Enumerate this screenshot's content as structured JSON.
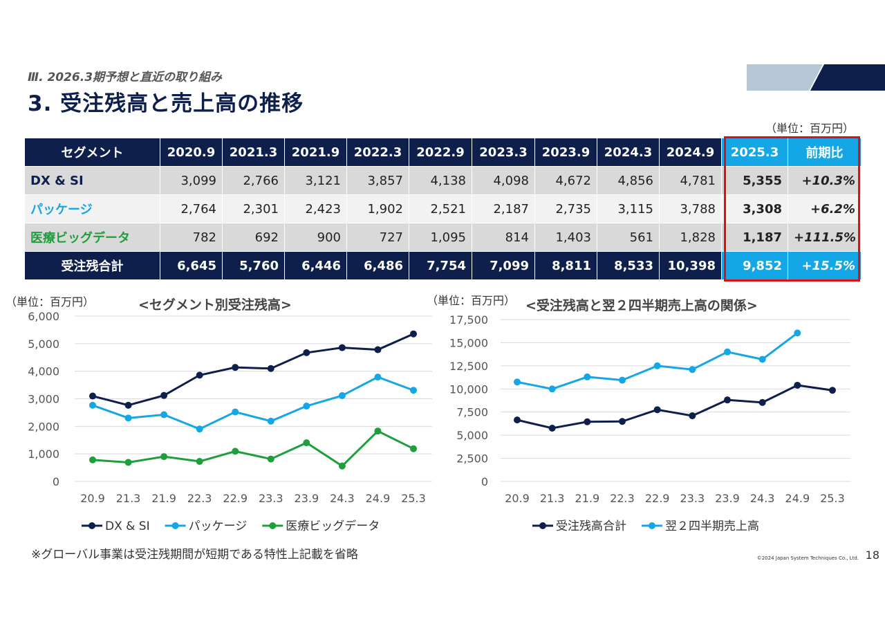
{
  "header": {
    "section": "Ⅲ. 2026.3期予想と直近の取り組み",
    "title": "3. 受注残高と売上高の推移"
  },
  "table": {
    "unit": "（単位：百万円）",
    "columns": [
      "セグメント",
      "2020.9",
      "2021.3",
      "2021.9",
      "2022.3",
      "2022.9",
      "2023.3",
      "2023.9",
      "2024.3",
      "2024.9",
      "2025.3",
      "前期比"
    ],
    "rows": [
      {
        "name": "DX & SI",
        "cells": [
          "3,099",
          "2,766",
          "3,121",
          "3,857",
          "4,138",
          "4,098",
          "4,672",
          "4,856",
          "4,781",
          "5,355",
          "+10.3%"
        ]
      },
      {
        "name": "パッケージ",
        "cells": [
          "2,764",
          "2,301",
          "2,423",
          "1,902",
          "2,521",
          "2,187",
          "2,735",
          "3,115",
          "3,788",
          "3,308",
          "+6.2%"
        ]
      },
      {
        "name": "医療ビッグデータ",
        "cells": [
          "782",
          "692",
          "900",
          "727",
          "1,095",
          "814",
          "1,403",
          "561",
          "1,828",
          "1,187",
          "+111.5%"
        ]
      },
      {
        "name": "受注残合計",
        "cells": [
          "6,645",
          "5,760",
          "6,446",
          "6,486",
          "7,754",
          "7,099",
          "8,811",
          "8,533",
          "10,398",
          "9,852",
          "+15.5%"
        ]
      }
    ]
  },
  "chart_data": [
    {
      "type": "line",
      "title": "<セグメント別受注残高>",
      "unit": "（単位：百万円）",
      "categories": [
        "20.9",
        "21.3",
        "21.9",
        "22.3",
        "22.9",
        "23.3",
        "23.9",
        "24.3",
        "24.9",
        "25.3"
      ],
      "ylim": [
        0,
        6000
      ],
      "yticks": [
        "6,000",
        "5,000",
        "4,000",
        "3,000",
        "2,000",
        "1,000",
        "0"
      ],
      "series": [
        {
          "name": "DX & SI",
          "color": "#0d1f4a",
          "values": [
            3099,
            2766,
            3121,
            3857,
            4138,
            4098,
            4672,
            4856,
            4781,
            5355
          ]
        },
        {
          "name": "パッケージ",
          "color": "#15a6e6",
          "values": [
            2764,
            2301,
            2423,
            1902,
            2521,
            2187,
            2735,
            3115,
            3788,
            3308
          ]
        },
        {
          "name": "医療ビッグデータ",
          "color": "#1f9e3e",
          "values": [
            782,
            692,
            900,
            727,
            1095,
            814,
            1403,
            561,
            1828,
            1187
          ]
        }
      ]
    },
    {
      "type": "line",
      "title": "<受注残高と翌２四半期売上高の関係>",
      "unit": "（単位：百万円）",
      "categories": [
        "20.9",
        "21.3",
        "21.9",
        "22.3",
        "22.9",
        "23.3",
        "23.9",
        "24.3",
        "24.9",
        "25.3"
      ],
      "ylim": [
        0,
        17500
      ],
      "yticks": [
        "17,500",
        "15,000",
        "12,500",
        "10,000",
        "7,500",
        "5,000",
        "2,500",
        "0"
      ],
      "series": [
        {
          "name": "受注残高合計",
          "color": "#0d1f4a",
          "values": [
            6645,
            5760,
            6446,
            6486,
            7754,
            7099,
            8811,
            8533,
            10398,
            9852
          ]
        },
        {
          "name": "翌２四半期売上高",
          "color": "#15a6e6",
          "values": [
            10750,
            10000,
            11300,
            10950,
            12500,
            12100,
            14000,
            13200,
            16050,
            null
          ]
        }
      ]
    }
  ],
  "footer": {
    "note": "※グローバル事業は受注残期間が短期である特性上記載を省略",
    "copyright": "©2024 Japan System Techniques Co., Ltd.",
    "page": "18"
  }
}
